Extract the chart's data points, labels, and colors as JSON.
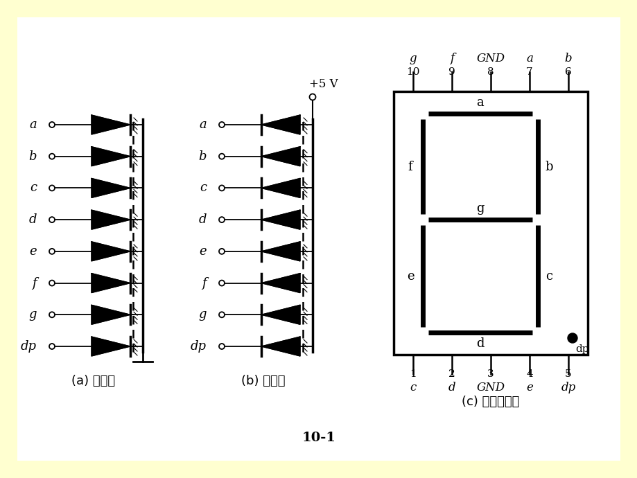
{
  "bg_color": "#FFFFD0",
  "white_color": "#FFFFFF",
  "black_color": "#000000",
  "labels_a": [
    "a",
    "b",
    "c",
    "d",
    "e",
    "f",
    "g",
    "dp"
  ],
  "caption_a": "(a) 共阴极",
  "caption_b": "(b) 共阳极",
  "caption_c": "(c) 外形及引脚",
  "figure_label": "10-1",
  "top_pins": [
    "g",
    "f",
    "GND",
    "a",
    "b"
  ],
  "top_pin_nums": [
    "10",
    "9",
    "8",
    "7",
    "6"
  ],
  "bot_pins": [
    "c",
    "d",
    "GND",
    "e",
    "dp"
  ],
  "bot_pin_nums": [
    "1",
    "2",
    "3",
    "4",
    "5"
  ],
  "voltage_label": "+5 V"
}
